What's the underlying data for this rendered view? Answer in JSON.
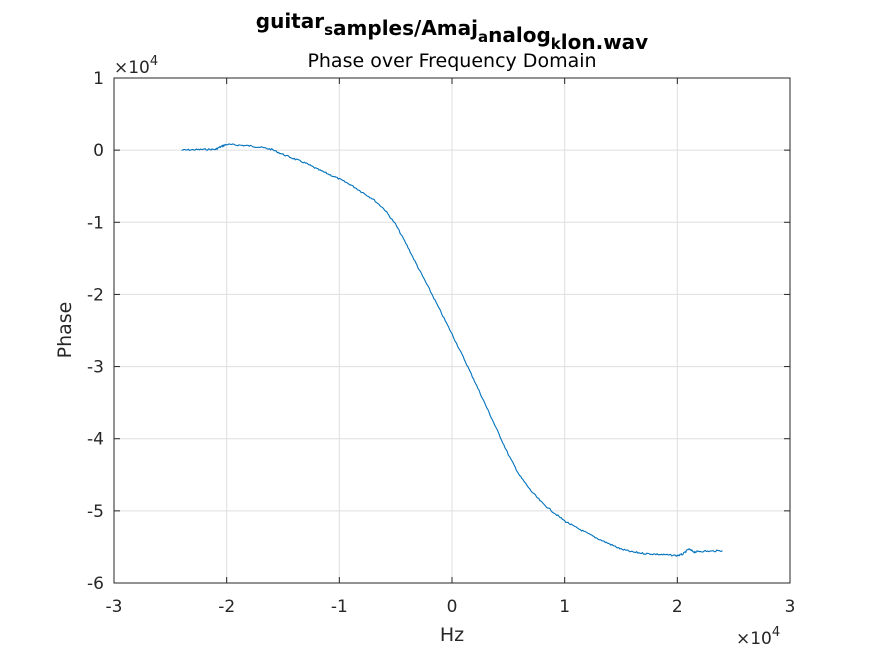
{
  "chart_data": {
    "type": "line",
    "title": {
      "segments": [
        {
          "text": "guitar",
          "sub": false
        },
        {
          "text": "s",
          "sub": true
        },
        {
          "text": "amples/Amaj",
          "sub": false
        },
        {
          "text": "a",
          "sub": true
        },
        {
          "text": "nalog",
          "sub": false
        },
        {
          "text": "k",
          "sub": true
        },
        {
          "text": "lon.wav",
          "sub": false
        }
      ]
    },
    "subtitle": "Phase over Frequency Domain",
    "xlabel": "Hz",
    "ylabel": "Phase",
    "x_exponent": {
      "base": "×10",
      "power": "4"
    },
    "y_exponent": {
      "base": "×10",
      "power": "4"
    },
    "xlim": [
      -30000,
      30000
    ],
    "ylim": [
      -60000,
      10000
    ],
    "x_ticks": [
      -30000,
      -20000,
      -10000,
      0,
      10000,
      20000,
      30000
    ],
    "x_tick_labels": [
      "-3",
      "-2",
      "-1",
      "0",
      "1",
      "2",
      "3"
    ],
    "y_ticks": [
      -60000,
      -50000,
      -40000,
      -30000,
      -20000,
      -10000,
      0,
      10000
    ],
    "y_tick_labels": [
      "-6",
      "-5",
      "-4",
      "-3",
      "-2",
      "-1",
      "0",
      "1"
    ],
    "grid": true,
    "line_color": "#0072bd",
    "series": [
      {
        "x": [
          -24000,
          -23000,
          -22000,
          -21000,
          -20500,
          -20000,
          -19000,
          -18000,
          -17000,
          -16000,
          -15000,
          -14000,
          -13000,
          -12000,
          -11000,
          -10000,
          -9000,
          -8000,
          -7000,
          -6000,
          -5000,
          -4000,
          -3000,
          -2000,
          -1000,
          0,
          1000,
          2000,
          3000,
          4000,
          5000,
          6000,
          7000,
          8000,
          9000,
          10000,
          11000,
          12000,
          13000,
          14000,
          15000,
          16000,
          17000,
          18000,
          19000,
          20000,
          20500,
          21000,
          21500,
          22000,
          23000,
          24000
        ],
        "y": [
          0,
          50,
          100,
          100,
          500,
          800,
          700,
          600,
          400,
          100,
          -600,
          -1200,
          -1800,
          -2600,
          -3300,
          -4000,
          -4800,
          -5800,
          -6800,
          -8200,
          -10300,
          -13200,
          -16300,
          -19300,
          -22400,
          -25500,
          -28700,
          -32000,
          -35400,
          -38800,
          -42200,
          -45100,
          -47200,
          -48900,
          -50200,
          -51400,
          -52300,
          -53100,
          -53900,
          -54600,
          -55300,
          -55700,
          -55900,
          -56000,
          -56100,
          -56200,
          -56000,
          -55300,
          -55700,
          -55600,
          -55600,
          -55500
        ]
      }
    ]
  }
}
